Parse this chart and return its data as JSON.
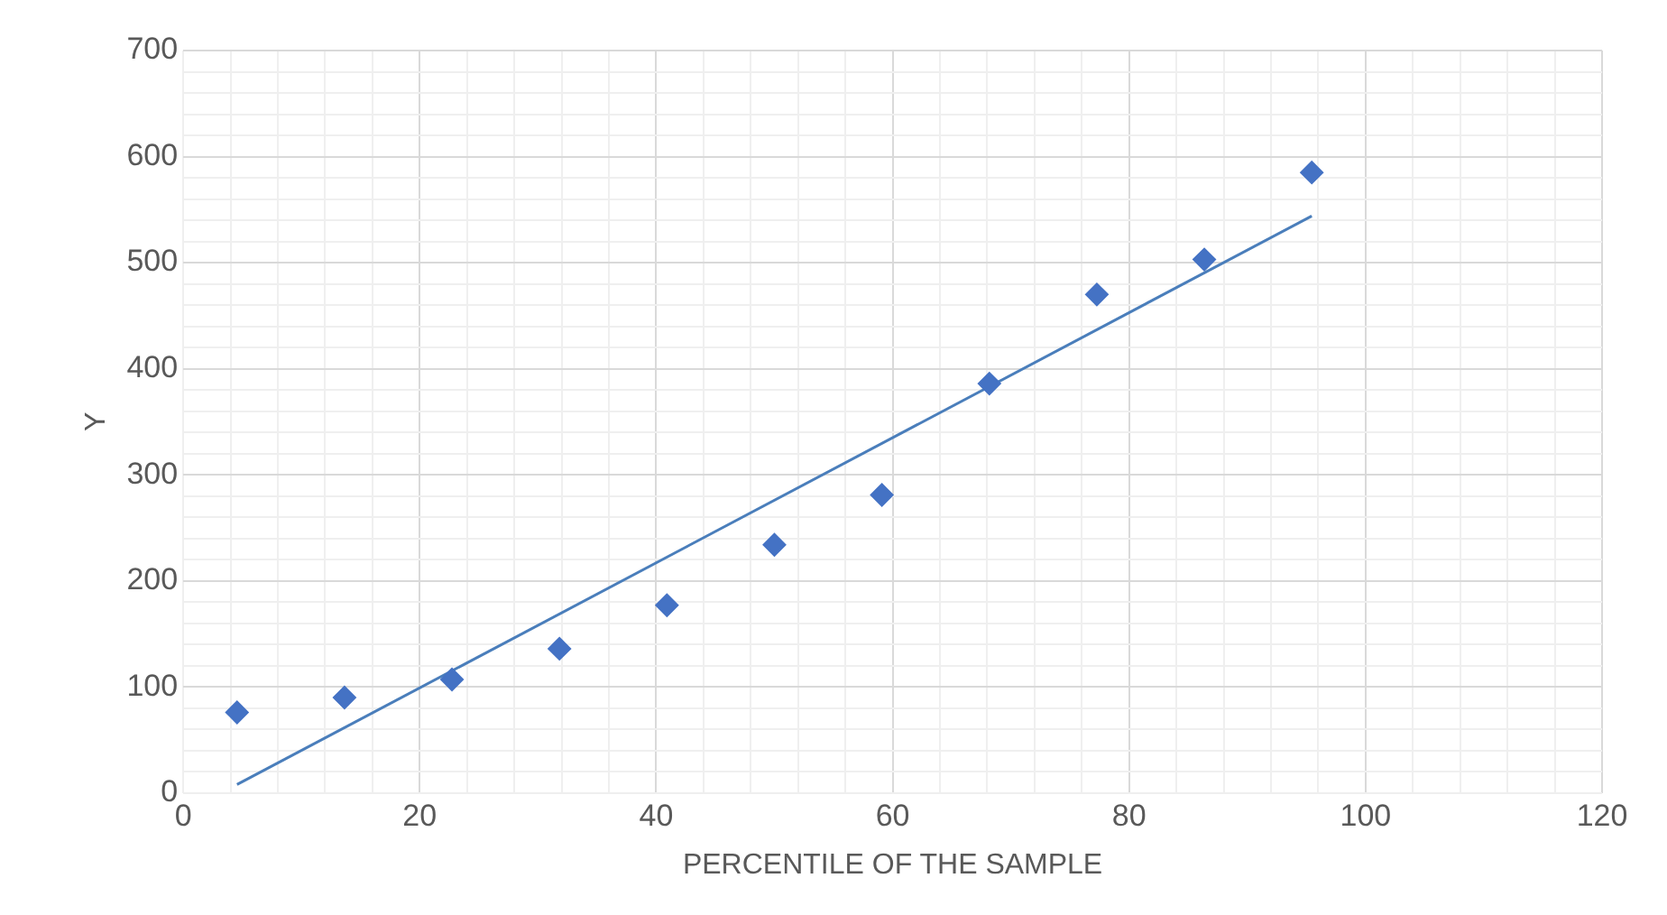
{
  "chart_data": {
    "type": "scatter",
    "xlabel": "PERCENTILE OF THE SAMPLE",
    "ylabel": "Y",
    "xlim": [
      0,
      120
    ],
    "ylim": [
      0,
      700
    ],
    "xticks": [
      0,
      {
        "value": 4,
        "label": null
      },
      {
        "value": 8,
        "label": null
      },
      {
        "value": 12,
        "label": null
      },
      {
        "value": 16,
        "label": null
      },
      20,
      {
        "value": 24,
        "label": null
      },
      {
        "value": 28,
        "label": null
      },
      {
        "value": 32,
        "label": null
      },
      {
        "value": 36,
        "label": null
      },
      40,
      {
        "value": 44,
        "label": null
      },
      {
        "value": 48,
        "label": null
      },
      {
        "value": 52,
        "label": null
      },
      {
        "value": 56,
        "label": null
      },
      60,
      {
        "value": 64,
        "label": null
      },
      {
        "value": 68,
        "label": null
      },
      {
        "value": 72,
        "label": null
      },
      {
        "value": 76,
        "label": null
      },
      80,
      {
        "value": 84,
        "label": null
      },
      {
        "value": 88,
        "label": null
      },
      {
        "value": 92,
        "label": null
      },
      {
        "value": 96,
        "label": null
      },
      100,
      {
        "value": 104,
        "label": null
      },
      {
        "value": 108,
        "label": null
      },
      {
        "value": 112,
        "label": null
      },
      {
        "value": 116,
        "label": null
      },
      120
    ],
    "yticks": [
      0,
      {
        "value": 20,
        "label": null
      },
      {
        "value": 40,
        "label": null
      },
      {
        "value": 60,
        "label": null
      },
      {
        "value": 80,
        "label": null
      },
      100,
      {
        "value": 120,
        "label": null
      },
      {
        "value": 140,
        "label": null
      },
      {
        "value": 160,
        "label": null
      },
      {
        "value": 180,
        "label": null
      },
      200,
      {
        "value": 220,
        "label": null
      },
      {
        "value": 240,
        "label": null
      },
      {
        "value": 260,
        "label": null
      },
      {
        "value": 280,
        "label": null
      },
      300,
      {
        "value": 320,
        "label": null
      },
      {
        "value": 340,
        "label": null
      },
      {
        "value": 360,
        "label": null
      },
      {
        "value": 380,
        "label": null
      },
      400,
      {
        "value": 420,
        "label": null
      },
      {
        "value": 440,
        "label": null
      },
      {
        "value": 460,
        "label": null
      },
      {
        "value": 480,
        "label": null
      },
      500,
      {
        "value": 520,
        "label": null
      },
      {
        "value": 540,
        "label": null
      },
      {
        "value": 560,
        "label": null
      },
      {
        "value": 580,
        "label": null
      },
      600,
      {
        "value": 620,
        "label": null
      },
      {
        "value": 640,
        "label": null
      },
      {
        "value": 660,
        "label": null
      },
      {
        "value": 680,
        "label": null
      },
      700
    ],
    "grid": true,
    "legend": false,
    "marker": "diamond",
    "series": [
      {
        "color": "#4472c4",
        "x": [
          4.55,
          13.64,
          22.73,
          31.82,
          40.91,
          50,
          59.09,
          68.18,
          77.27,
          86.36,
          95.45
        ],
        "values": [
          76,
          90,
          107,
          136,
          177,
          234,
          281,
          386,
          470,
          503,
          585
        ]
      },
      {
        "type": "line",
        "color": "#4a7ebb",
        "marker": "none",
        "x": [
          4.55,
          95.45
        ],
        "values": [
          8,
          544
        ]
      }
    ]
  }
}
